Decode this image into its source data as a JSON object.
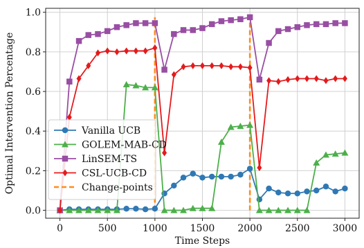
{
  "chart_data": {
    "type": "line",
    "xlabel": "Time Steps",
    "ylabel": "Optimal Intervention Percentage",
    "xlim": [
      -150,
      3150
    ],
    "ylim": [
      -0.04,
      1.02
    ],
    "x_ticks": [
      0,
      500,
      1000,
      1500,
      2000,
      2500,
      3000
    ],
    "x_tick_labels": [
      "0",
      "500",
      "1000",
      "1500",
      "2000",
      "2500",
      "3000"
    ],
    "y_ticks": [
      0.0,
      0.2,
      0.4,
      0.6,
      0.8,
      1.0
    ],
    "y_tick_labels": [
      "0.0",
      "0.2",
      "0.4",
      "0.6",
      "0.8",
      "1.0"
    ],
    "grid": true,
    "legend_position": "center-left",
    "x": [
      0,
      100,
      200,
      300,
      400,
      500,
      600,
      700,
      800,
      900,
      1000,
      1100,
      1200,
      1300,
      1400,
      1500,
      1600,
      1700,
      1800,
      1900,
      2000,
      2100,
      2200,
      2300,
      2400,
      2500,
      2600,
      2700,
      2800,
      2900,
      3000
    ],
    "series": [
      {
        "name": "Vanilla UCB",
        "color": "#2f78b4",
        "marker": "circle",
        "values": [
          0.0,
          0.005,
          0.005,
          0.005,
          0.005,
          0.005,
          0.005,
          0.008,
          0.008,
          0.005,
          0.008,
          0.085,
          0.125,
          0.165,
          0.185,
          0.165,
          0.17,
          0.17,
          0.17,
          0.18,
          0.21,
          0.055,
          0.11,
          0.09,
          0.085,
          0.085,
          0.095,
          0.1,
          0.12,
          0.095,
          0.11
        ]
      },
      {
        "name": "GOLEM-MAB-CD",
        "color": "#4daf4a",
        "marker": "triangle",
        "values": [
          0.0,
          0.0,
          0.0,
          0.0,
          0.0,
          0.0,
          0.0,
          0.635,
          0.63,
          0.62,
          0.62,
          0.0,
          0.0,
          0.0,
          0.01,
          0.01,
          0.01,
          0.345,
          0.42,
          0.425,
          0.43,
          0.0,
          0.0,
          0.0,
          0.0,
          0.0,
          0.0,
          0.24,
          0.28,
          0.285,
          0.29
        ]
      },
      {
        "name": "LinSEM-TS",
        "color": "#984ea3",
        "marker": "square",
        "values": [
          0.0,
          0.65,
          0.855,
          0.885,
          0.89,
          0.905,
          0.925,
          0.935,
          0.945,
          0.945,
          0.945,
          0.71,
          0.89,
          0.91,
          0.91,
          0.92,
          0.94,
          0.955,
          0.96,
          0.965,
          0.975,
          0.66,
          0.845,
          0.905,
          0.915,
          0.925,
          0.935,
          0.94,
          0.94,
          0.945,
          0.945
        ]
      },
      {
        "name": "CSL-UCB-CD",
        "color": "#e41a1c",
        "marker": "diamond",
        "values": [
          0.0,
          0.47,
          0.665,
          0.73,
          0.795,
          0.805,
          0.8,
          0.805,
          0.805,
          0.805,
          0.82,
          0.29,
          0.685,
          0.725,
          0.73,
          0.73,
          0.73,
          0.73,
          0.725,
          0.725,
          0.72,
          0.215,
          0.655,
          0.65,
          0.66,
          0.665,
          0.665,
          0.665,
          0.655,
          0.665,
          0.665
        ]
      }
    ],
    "change_points": {
      "name": "Change-points",
      "color": "#ff8c1a",
      "x": [
        1000,
        2000
      ]
    }
  }
}
